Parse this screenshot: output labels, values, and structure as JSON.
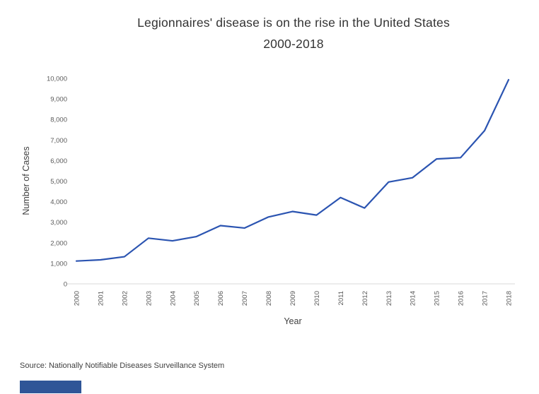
{
  "title": {
    "line1": "Legionnaires' disease is on the rise in the United States",
    "line2": "2000-2018"
  },
  "source": "Source: Nationally Notifiable Diseases Surveillance System",
  "accent_bar_color": "#2F5597",
  "chart_data": {
    "type": "line",
    "title": "Legionnaires' disease is on the rise in the United States 2000-2018",
    "x": [
      2000,
      2001,
      2002,
      2003,
      2004,
      2005,
      2006,
      2007,
      2008,
      2009,
      2010,
      2011,
      2012,
      2013,
      2014,
      2015,
      2016,
      2017,
      2018
    ],
    "values": [
      1110,
      1168,
      1321,
      2223,
      2093,
      2301,
      2834,
      2716,
      3254,
      3522,
      3346,
      4202,
      3688,
      4954,
      5166,
      6079,
      6141,
      7458,
      9933
    ],
    "xlabel": "Year",
    "ylabel": "Number of Cases",
    "ylim": [
      0,
      10000
    ],
    "ytick_step": 1000,
    "grid": false,
    "legend": "none",
    "line_color": "#2B54B1",
    "axis_line_color": "#D9D9D9",
    "tick_label_color": "#595959"
  }
}
